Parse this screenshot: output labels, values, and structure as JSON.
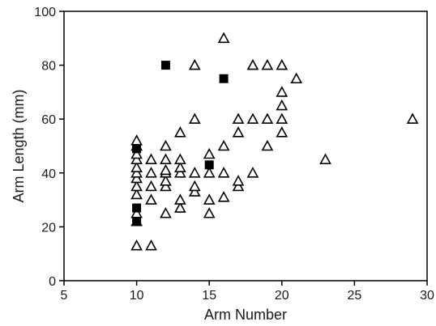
{
  "chart_data": {
    "type": "scatter",
    "title": "",
    "xlabel": "Arm Number",
    "ylabel": "Arm Length (mm)",
    "xlim": [
      5,
      30
    ],
    "ylim": [
      0,
      100
    ],
    "xticks": [
      5,
      10,
      15,
      20,
      25,
      30
    ],
    "yticks": [
      0,
      20,
      40,
      60,
      80,
      100
    ],
    "grid": false,
    "legend": "none",
    "series": [
      {
        "marker": "open-triangle",
        "color": "#000000",
        "points": [
          [
            10,
            13
          ],
          [
            10,
            22
          ],
          [
            10,
            25
          ],
          [
            10,
            32
          ],
          [
            10,
            35
          ],
          [
            10,
            38
          ],
          [
            10,
            40
          ],
          [
            10,
            42
          ],
          [
            10,
            45
          ],
          [
            10,
            47
          ],
          [
            10,
            50
          ],
          [
            10,
            52
          ],
          [
            11,
            13
          ],
          [
            11,
            30
          ],
          [
            11,
            35
          ],
          [
            11,
            40
          ],
          [
            11,
            45
          ],
          [
            12,
            25
          ],
          [
            12,
            35
          ],
          [
            12,
            37
          ],
          [
            12,
            40
          ],
          [
            12,
            41
          ],
          [
            12,
            45
          ],
          [
            12,
            50
          ],
          [
            13,
            27
          ],
          [
            13,
            30
          ],
          [
            13,
            40
          ],
          [
            13,
            42
          ],
          [
            13,
            45
          ],
          [
            13,
            55
          ],
          [
            14,
            33
          ],
          [
            14,
            35
          ],
          [
            14,
            40
          ],
          [
            14,
            60
          ],
          [
            14,
            80
          ],
          [
            15,
            25
          ],
          [
            15,
            30
          ],
          [
            15,
            40
          ],
          [
            15,
            47
          ],
          [
            16,
            31
          ],
          [
            16,
            40
          ],
          [
            16,
            50
          ],
          [
            16,
            90
          ],
          [
            17,
            35
          ],
          [
            17,
            37
          ],
          [
            17,
            55
          ],
          [
            17,
            60
          ],
          [
            18,
            40
          ],
          [
            18,
            60
          ],
          [
            18,
            80
          ],
          [
            19,
            50
          ],
          [
            19,
            60
          ],
          [
            19,
            80
          ],
          [
            20,
            55
          ],
          [
            20,
            60
          ],
          [
            20,
            65
          ],
          [
            20,
            70
          ],
          [
            20,
            80
          ],
          [
            21,
            75
          ],
          [
            23,
            45
          ],
          [
            29,
            60
          ]
        ]
      },
      {
        "marker": "filled-square",
        "color": "#000000",
        "points": [
          [
            10,
            22
          ],
          [
            10,
            27
          ],
          [
            10,
            49
          ],
          [
            12,
            80
          ],
          [
            15,
            43
          ],
          [
            16,
            75
          ]
        ]
      }
    ]
  }
}
